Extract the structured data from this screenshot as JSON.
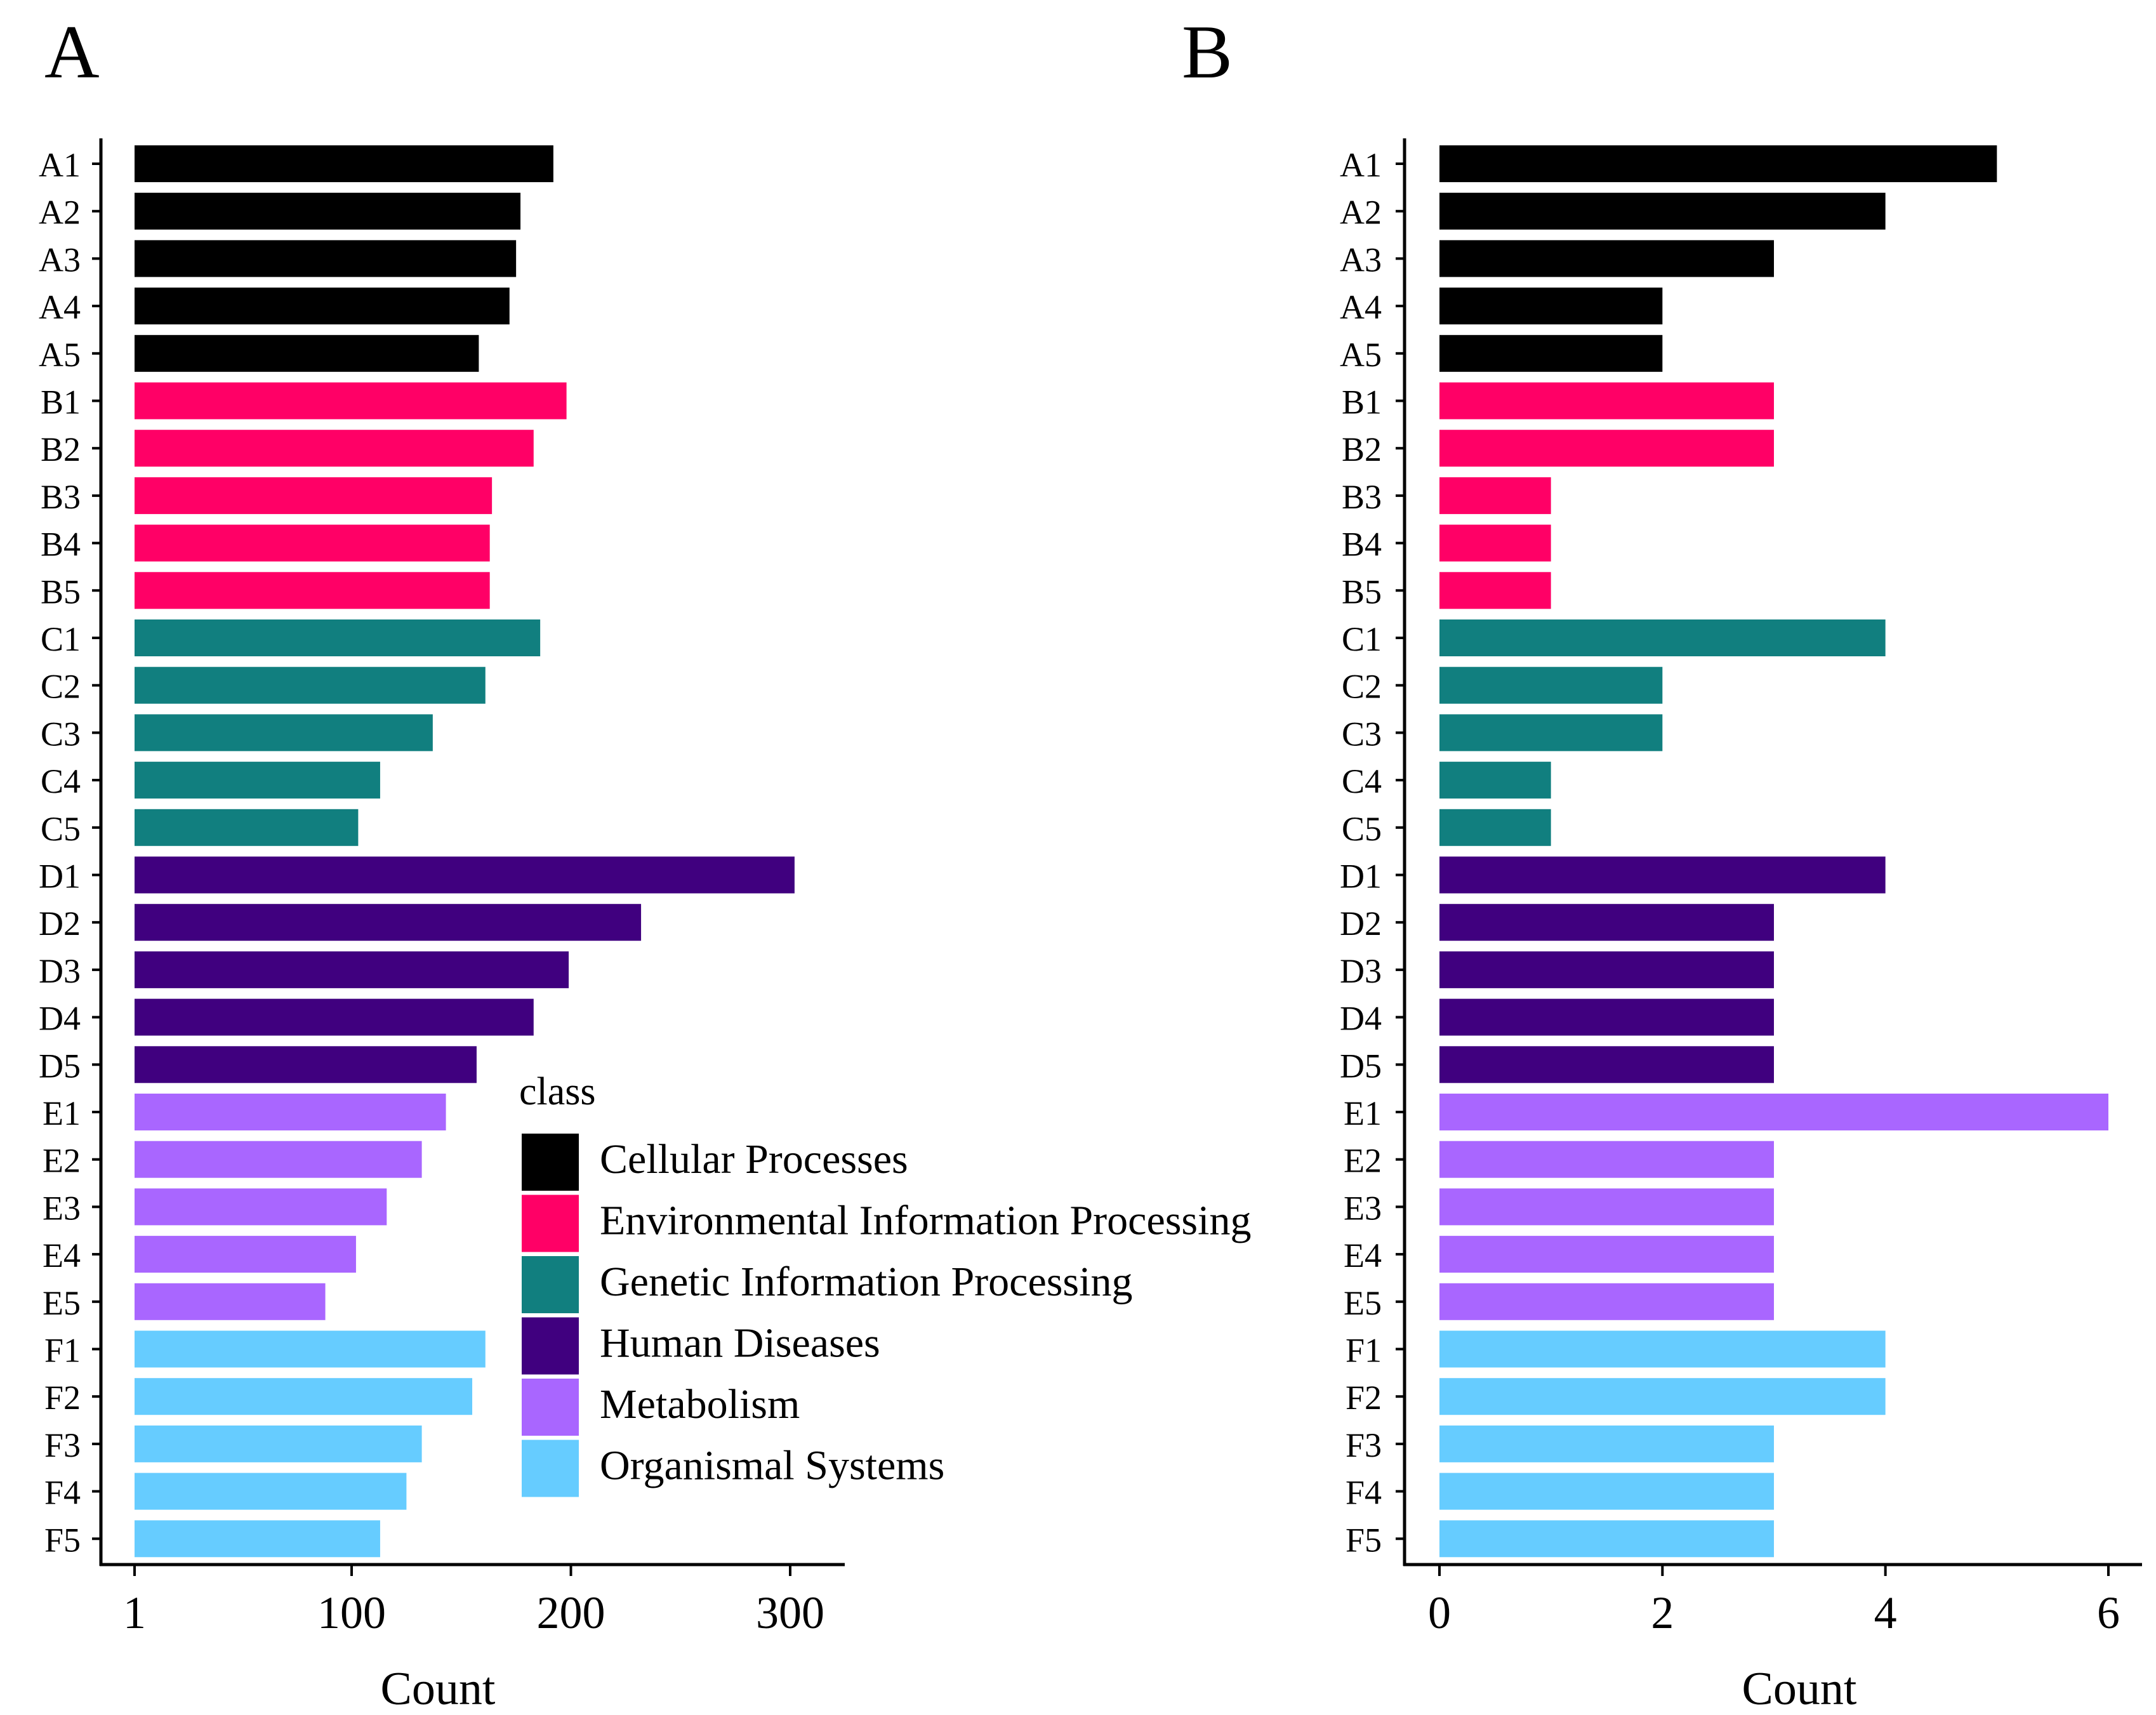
{
  "chart_data": [
    {
      "panel_label": "A",
      "type": "bar",
      "orientation": "horizontal",
      "xlabel": "Count",
      "ylabel": "",
      "xlim": [
        1,
        330
      ],
      "xticks": [
        1,
        100,
        200,
        300
      ],
      "grid": false,
      "categories": [
        "A1",
        "A2",
        "A3",
        "A4",
        "A5",
        "B1",
        "B2",
        "B3",
        "B4",
        "B5",
        "C1",
        "C2",
        "C3",
        "C4",
        "C5",
        "D1",
        "D2",
        "D3",
        "D4",
        "D5",
        "E1",
        "E2",
        "E3",
        "E4",
        "E5",
        "F1",
        "F2",
        "F3",
        "F4",
        "F5"
      ],
      "values": [
        192,
        177,
        175,
        172,
        158,
        198,
        183,
        164,
        163,
        163,
        186,
        161,
        137,
        113,
        103,
        302,
        232,
        199,
        183,
        157,
        143,
        132,
        116,
        102,
        88,
        161,
        155,
        132,
        125,
        113
      ],
      "classes": [
        "Cellular Processes",
        "Cellular Processes",
        "Cellular Processes",
        "Cellular Processes",
        "Cellular Processes",
        "Environmental Information Processing",
        "Environmental Information Processing",
        "Environmental Information Processing",
        "Environmental Information Processing",
        "Environmental Information Processing",
        "Genetic Information Processing",
        "Genetic Information Processing",
        "Genetic Information Processing",
        "Genetic Information Processing",
        "Genetic Information Processing",
        "Human Diseases",
        "Human Diseases",
        "Human Diseases",
        "Human Diseases",
        "Human Diseases",
        "Metabolism",
        "Metabolism",
        "Metabolism",
        "Metabolism",
        "Metabolism",
        "Organismal Systems",
        "Organismal Systems",
        "Organismal Systems",
        "Organismal Systems",
        "Organismal Systems"
      ],
      "legend": {
        "title": "class",
        "placement": "inside-lower-right",
        "entries": [
          {
            "label": "Cellular Processes",
            "color": "#000000"
          },
          {
            "label": "Environmental Information Processing",
            "color": "#FF0066"
          },
          {
            "label": "Genetic Information Processing",
            "color": "#117F7F"
          },
          {
            "label": "Human Diseases",
            "color": "#40007F"
          },
          {
            "label": "Metabolism",
            "color": "#A966FF"
          },
          {
            "label": "Organismal Systems",
            "color": "#66CCFF"
          }
        ]
      }
    },
    {
      "panel_label": "B",
      "type": "bar",
      "orientation": "horizontal",
      "xlabel": "Count",
      "ylabel": "",
      "xlim": [
        0,
        6.3
      ],
      "xticks": [
        0,
        2,
        4,
        6
      ],
      "grid": false,
      "categories": [
        "A1",
        "A2",
        "A3",
        "A4",
        "A5",
        "B1",
        "B2",
        "B3",
        "B4",
        "B5",
        "C1",
        "C2",
        "C3",
        "C4",
        "C5",
        "D1",
        "D2",
        "D3",
        "D4",
        "D5",
        "E1",
        "E2",
        "E3",
        "E4",
        "E5",
        "F1",
        "F2",
        "F3",
        "F4",
        "F5"
      ],
      "values": [
        5,
        4,
        3,
        2,
        2,
        3,
        3,
        1,
        1,
        1,
        4,
        2,
        2,
        1,
        1,
        4,
        3,
        3,
        3,
        3,
        6,
        3,
        3,
        3,
        3,
        4,
        4,
        3,
        3,
        3
      ],
      "classes": [
        "Cellular Processes",
        "Cellular Processes",
        "Cellular Processes",
        "Cellular Processes",
        "Cellular Processes",
        "Environmental Information Processing",
        "Environmental Information Processing",
        "Environmental Information Processing",
        "Environmental Information Processing",
        "Environmental Information Processing",
        "Genetic Information Processing",
        "Genetic Information Processing",
        "Genetic Information Processing",
        "Genetic Information Processing",
        "Genetic Information Processing",
        "Human Diseases",
        "Human Diseases",
        "Human Diseases",
        "Human Diseases",
        "Human Diseases",
        "Metabolism",
        "Metabolism",
        "Metabolism",
        "Metabolism",
        "Metabolism",
        "Organismal Systems",
        "Organismal Systems",
        "Organismal Systems",
        "Organismal Systems",
        "Organismal Systems"
      ]
    }
  ]
}
